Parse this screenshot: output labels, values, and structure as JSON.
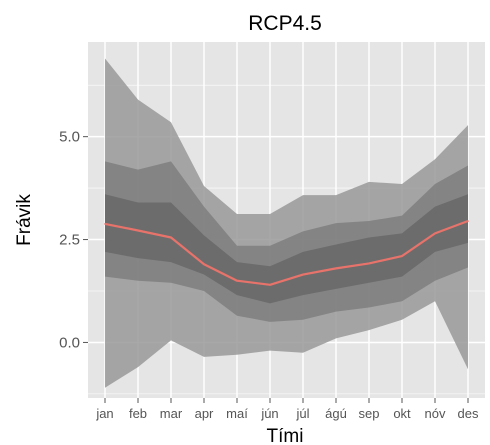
{
  "chart_data": {
    "type": "area",
    "title": "RCP4.5",
    "xlabel": "Tími",
    "ylabel": "Frávik",
    "categories": [
      "jan",
      "feb",
      "mar",
      "apr",
      "maí",
      "jún",
      "júl",
      "ágú",
      "sep",
      "okt",
      "nóv",
      "des"
    ],
    "yticks": [
      0.0,
      2.5,
      5.0
    ],
    "ytick_labels": [
      "0.0",
      "2.5",
      "5.0"
    ],
    "ylim": [
      -1.35,
      7.3
    ],
    "grid": true,
    "legend": "none",
    "series": [
      {
        "values": [
          2.88,
          2.72,
          2.55,
          1.9,
          1.5,
          1.4,
          1.65,
          1.8,
          1.92,
          2.1,
          2.65,
          2.95
        ]
      }
    ],
    "bands": [
      {
        "lower": [
          -1.1,
          -0.6,
          0.05,
          -0.35,
          -0.3,
          -0.2,
          -0.25,
          0.1,
          0.3,
          0.55,
          1.0,
          -0.65
        ],
        "upper": [
          6.9,
          5.9,
          5.35,
          3.8,
          3.12,
          3.12,
          3.58,
          3.58,
          3.9,
          3.85,
          4.45,
          5.28
        ]
      },
      {
        "lower": [
          1.6,
          1.5,
          1.45,
          1.25,
          0.65,
          0.5,
          0.55,
          0.75,
          0.85,
          1.0,
          1.5,
          1.82
        ],
        "upper": [
          4.4,
          4.2,
          4.4,
          3.3,
          2.35,
          2.35,
          2.7,
          2.9,
          2.95,
          3.08,
          3.85,
          4.3
        ]
      },
      {
        "lower": [
          2.2,
          2.05,
          1.95,
          1.65,
          1.15,
          0.95,
          1.15,
          1.3,
          1.45,
          1.6,
          2.2,
          2.42
        ],
        "upper": [
          3.6,
          3.4,
          3.4,
          2.6,
          1.95,
          1.85,
          2.2,
          2.38,
          2.55,
          2.65,
          3.3,
          3.6
        ]
      }
    ],
    "colors": {
      "panel_background": "#e5e5e5",
      "grid": "#ffffff",
      "outer_band": "#999999",
      "middle_band": "#7f7f7f",
      "inner_band": "#676767",
      "line": "#e8736b"
    }
  }
}
